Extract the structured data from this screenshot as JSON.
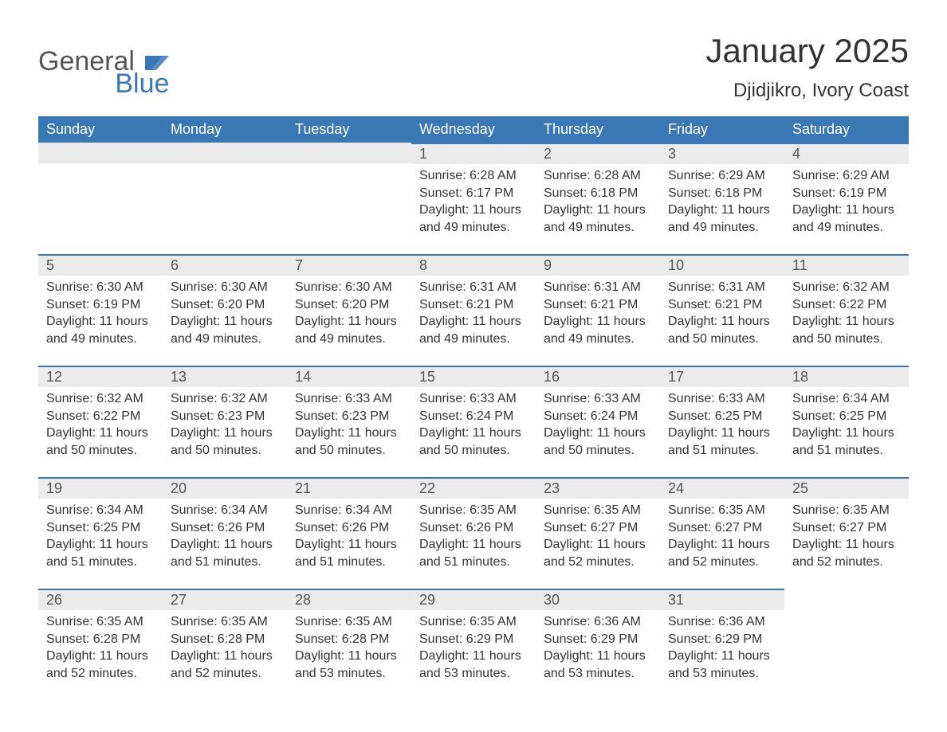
{
  "logo": {
    "word1": "General",
    "word2": "Blue",
    "icon_color": "#3a78b5"
  },
  "title": "January 2025",
  "subtitle": "Djidjikro, Ivory Coast",
  "colors": {
    "header_bg": "#3a78b5",
    "header_text": "#ffffff",
    "daynum_bg": "#ebebeb",
    "border_top": "#3a78b5",
    "body_text": "#333333",
    "page_bg": "#ffffff"
  },
  "font_sizes": {
    "title": 42,
    "subtitle": 24,
    "th": 18,
    "daynum": 18,
    "body": 16
  },
  "weekdays": [
    "Sunday",
    "Monday",
    "Tuesday",
    "Wednesday",
    "Thursday",
    "Friday",
    "Saturday"
  ],
  "labels": {
    "sunrise": "Sunrise: ",
    "sunset": "Sunset: ",
    "daylight": "Daylight: "
  },
  "weeks": [
    [
      null,
      null,
      null,
      {
        "n": "1",
        "sunrise": "6:28 AM",
        "sunset": "6:17 PM",
        "daylight": "11 hours and 49 minutes."
      },
      {
        "n": "2",
        "sunrise": "6:28 AM",
        "sunset": "6:18 PM",
        "daylight": "11 hours and 49 minutes."
      },
      {
        "n": "3",
        "sunrise": "6:29 AM",
        "sunset": "6:18 PM",
        "daylight": "11 hours and 49 minutes."
      },
      {
        "n": "4",
        "sunrise": "6:29 AM",
        "sunset": "6:19 PM",
        "daylight": "11 hours and 49 minutes."
      }
    ],
    [
      {
        "n": "5",
        "sunrise": "6:30 AM",
        "sunset": "6:19 PM",
        "daylight": "11 hours and 49 minutes."
      },
      {
        "n": "6",
        "sunrise": "6:30 AM",
        "sunset": "6:20 PM",
        "daylight": "11 hours and 49 minutes."
      },
      {
        "n": "7",
        "sunrise": "6:30 AM",
        "sunset": "6:20 PM",
        "daylight": "11 hours and 49 minutes."
      },
      {
        "n": "8",
        "sunrise": "6:31 AM",
        "sunset": "6:21 PM",
        "daylight": "11 hours and 49 minutes."
      },
      {
        "n": "9",
        "sunrise": "6:31 AM",
        "sunset": "6:21 PM",
        "daylight": "11 hours and 49 minutes."
      },
      {
        "n": "10",
        "sunrise": "6:31 AM",
        "sunset": "6:21 PM",
        "daylight": "11 hours and 50 minutes."
      },
      {
        "n": "11",
        "sunrise": "6:32 AM",
        "sunset": "6:22 PM",
        "daylight": "11 hours and 50 minutes."
      }
    ],
    [
      {
        "n": "12",
        "sunrise": "6:32 AM",
        "sunset": "6:22 PM",
        "daylight": "11 hours and 50 minutes."
      },
      {
        "n": "13",
        "sunrise": "6:32 AM",
        "sunset": "6:23 PM",
        "daylight": "11 hours and 50 minutes."
      },
      {
        "n": "14",
        "sunrise": "6:33 AM",
        "sunset": "6:23 PM",
        "daylight": "11 hours and 50 minutes."
      },
      {
        "n": "15",
        "sunrise": "6:33 AM",
        "sunset": "6:24 PM",
        "daylight": "11 hours and 50 minutes."
      },
      {
        "n": "16",
        "sunrise": "6:33 AM",
        "sunset": "6:24 PM",
        "daylight": "11 hours and 50 minutes."
      },
      {
        "n": "17",
        "sunrise": "6:33 AM",
        "sunset": "6:25 PM",
        "daylight": "11 hours and 51 minutes."
      },
      {
        "n": "18",
        "sunrise": "6:34 AM",
        "sunset": "6:25 PM",
        "daylight": "11 hours and 51 minutes."
      }
    ],
    [
      {
        "n": "19",
        "sunrise": "6:34 AM",
        "sunset": "6:25 PM",
        "daylight": "11 hours and 51 minutes."
      },
      {
        "n": "20",
        "sunrise": "6:34 AM",
        "sunset": "6:26 PM",
        "daylight": "11 hours and 51 minutes."
      },
      {
        "n": "21",
        "sunrise": "6:34 AM",
        "sunset": "6:26 PM",
        "daylight": "11 hours and 51 minutes."
      },
      {
        "n": "22",
        "sunrise": "6:35 AM",
        "sunset": "6:26 PM",
        "daylight": "11 hours and 51 minutes."
      },
      {
        "n": "23",
        "sunrise": "6:35 AM",
        "sunset": "6:27 PM",
        "daylight": "11 hours and 52 minutes."
      },
      {
        "n": "24",
        "sunrise": "6:35 AM",
        "sunset": "6:27 PM",
        "daylight": "11 hours and 52 minutes."
      },
      {
        "n": "25",
        "sunrise": "6:35 AM",
        "sunset": "6:27 PM",
        "daylight": "11 hours and 52 minutes."
      }
    ],
    [
      {
        "n": "26",
        "sunrise": "6:35 AM",
        "sunset": "6:28 PM",
        "daylight": "11 hours and 52 minutes."
      },
      {
        "n": "27",
        "sunrise": "6:35 AM",
        "sunset": "6:28 PM",
        "daylight": "11 hours and 52 minutes."
      },
      {
        "n": "28",
        "sunrise": "6:35 AM",
        "sunset": "6:28 PM",
        "daylight": "11 hours and 53 minutes."
      },
      {
        "n": "29",
        "sunrise": "6:35 AM",
        "sunset": "6:29 PM",
        "daylight": "11 hours and 53 minutes."
      },
      {
        "n": "30",
        "sunrise": "6:36 AM",
        "sunset": "6:29 PM",
        "daylight": "11 hours and 53 minutes."
      },
      {
        "n": "31",
        "sunrise": "6:36 AM",
        "sunset": "6:29 PM",
        "daylight": "11 hours and 53 minutes."
      },
      null
    ]
  ]
}
